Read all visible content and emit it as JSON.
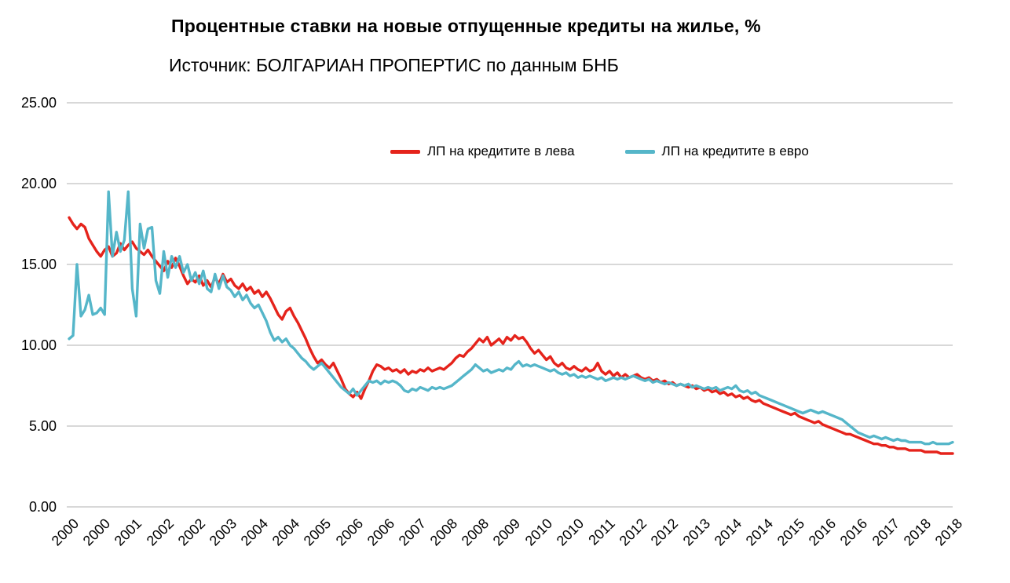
{
  "chart_data": {
    "type": "line",
    "title": "Процентные ставки на новые отпущенные кредиты на жилье, %",
    "subtitle": "Источник: БОЛГАРИАН ПРОПЕРТИС по данным БНБ",
    "x_unit": "month",
    "x_start": "2000-01",
    "x_end": "2018-09",
    "ylim": [
      0,
      25
    ],
    "grid": true,
    "legend_position": "top-center",
    "y_ticks": [
      {
        "value": 0,
        "label": "0.00"
      },
      {
        "value": 5,
        "label": "5.00"
      },
      {
        "value": 10,
        "label": "10.00"
      },
      {
        "value": 15,
        "label": "15.00"
      },
      {
        "value": 20,
        "label": "20.00"
      },
      {
        "value": 25,
        "label": "25.00"
      }
    ],
    "x_ticks": [
      {
        "m": 0,
        "label": "2000"
      },
      {
        "m": 8,
        "label": "2000"
      },
      {
        "m": 16,
        "label": "2001"
      },
      {
        "m": 24,
        "label": "2002"
      },
      {
        "m": 32,
        "label": "2002"
      },
      {
        "m": 40,
        "label": "2003"
      },
      {
        "m": 48,
        "label": "2004"
      },
      {
        "m": 56,
        "label": "2004"
      },
      {
        "m": 64,
        "label": "2005"
      },
      {
        "m": 72,
        "label": "2006"
      },
      {
        "m": 80,
        "label": "2006"
      },
      {
        "m": 88,
        "label": "2007"
      },
      {
        "m": 96,
        "label": "2008"
      },
      {
        "m": 104,
        "label": "2008"
      },
      {
        "m": 112,
        "label": "2009"
      },
      {
        "m": 120,
        "label": "2010"
      },
      {
        "m": 128,
        "label": "2010"
      },
      {
        "m": 136,
        "label": "2011"
      },
      {
        "m": 144,
        "label": "2012"
      },
      {
        "m": 152,
        "label": "2012"
      },
      {
        "m": 160,
        "label": "2013"
      },
      {
        "m": 168,
        "label": "2014"
      },
      {
        "m": 176,
        "label": "2014"
      },
      {
        "m": 184,
        "label": "2015"
      },
      {
        "m": 192,
        "label": "2016"
      },
      {
        "m": 200,
        "label": "2016"
      },
      {
        "m": 208,
        "label": "2017"
      },
      {
        "m": 216,
        "label": "2018"
      },
      {
        "m": 224,
        "label": "2018"
      }
    ],
    "series": [
      {
        "id": "leva",
        "name": "ЛП на кредитите в лева",
        "color": "#e5231b",
        "values": [
          17.9,
          17.5,
          17.2,
          17.5,
          17.3,
          16.6,
          16.2,
          15.8,
          15.5,
          15.9,
          16.1,
          15.5,
          15.7,
          16.3,
          15.9,
          16.2,
          16.4,
          16.0,
          15.8,
          15.6,
          15.9,
          15.5,
          15.2,
          14.9,
          14.6,
          15.2,
          14.8,
          15.4,
          14.9,
          14.3,
          13.8,
          14.1,
          13.9,
          14.3,
          13.7,
          14.0,
          13.6,
          14.2,
          13.8,
          14.4,
          13.9,
          14.1,
          13.7,
          13.5,
          13.8,
          13.4,
          13.6,
          13.2,
          13.4,
          13.0,
          13.3,
          12.9,
          12.4,
          11.9,
          11.6,
          12.1,
          12.3,
          11.8,
          11.4,
          10.9,
          10.4,
          9.8,
          9.3,
          8.9,
          9.1,
          8.8,
          8.6,
          8.9,
          8.4,
          7.9,
          7.3,
          7.0,
          6.8,
          7.1,
          6.7,
          7.3,
          7.8,
          8.4,
          8.8,
          8.7,
          8.5,
          8.6,
          8.4,
          8.5,
          8.3,
          8.5,
          8.2,
          8.4,
          8.3,
          8.5,
          8.4,
          8.6,
          8.4,
          8.5,
          8.6,
          8.5,
          8.7,
          8.9,
          9.2,
          9.4,
          9.3,
          9.6,
          9.8,
          10.1,
          10.4,
          10.2,
          10.5,
          10.0,
          10.2,
          10.4,
          10.1,
          10.5,
          10.3,
          10.6,
          10.4,
          10.5,
          10.2,
          9.8,
          9.5,
          9.7,
          9.4,
          9.1,
          9.3,
          8.9,
          8.7,
          8.9,
          8.6,
          8.5,
          8.7,
          8.5,
          8.4,
          8.6,
          8.4,
          8.5,
          8.9,
          8.4,
          8.2,
          8.4,
          8.1,
          8.3,
          8.0,
          8.2,
          8.0,
          8.1,
          8.2,
          8.0,
          7.9,
          8.0,
          7.8,
          7.9,
          7.7,
          7.8,
          7.6,
          7.7,
          7.5,
          7.6,
          7.5,
          7.4,
          7.5,
          7.3,
          7.4,
          7.2,
          7.3,
          7.1,
          7.2,
          7.0,
          7.1,
          6.9,
          7.0,
          6.8,
          6.9,
          6.7,
          6.8,
          6.6,
          6.5,
          6.6,
          6.4,
          6.3,
          6.2,
          6.1,
          6.0,
          5.9,
          5.8,
          5.7,
          5.8,
          5.6,
          5.5,
          5.4,
          5.3,
          5.2,
          5.3,
          5.1,
          5.0,
          4.9,
          4.8,
          4.7,
          4.6,
          4.5,
          4.5,
          4.4,
          4.3,
          4.2,
          4.1,
          4.0,
          3.9,
          3.9,
          3.8,
          3.8,
          3.7,
          3.7,
          3.6,
          3.6,
          3.6,
          3.5,
          3.5,
          3.5,
          3.5,
          3.4,
          3.4,
          3.4,
          3.4,
          3.3,
          3.3,
          3.3,
          3.3
        ]
      },
      {
        "id": "euro",
        "name": "ЛП на кредитите в евро",
        "color": "#55b6c9",
        "values": [
          10.4,
          10.6,
          15.0,
          11.8,
          12.2,
          13.1,
          11.9,
          12.0,
          12.3,
          11.9,
          19.5,
          15.5,
          17.0,
          15.8,
          16.5,
          19.5,
          13.5,
          11.8,
          17.5,
          16.0,
          17.2,
          17.3,
          14.0,
          13.2,
          15.8,
          14.2,
          15.5,
          14.8,
          15.5,
          14.5,
          15.0,
          14.0,
          14.5,
          13.8,
          14.6,
          13.5,
          13.3,
          14.4,
          13.5,
          14.3,
          13.6,
          13.4,
          13.0,
          13.3,
          12.8,
          13.1,
          12.6,
          12.3,
          12.5,
          12.0,
          11.5,
          10.8,
          10.3,
          10.5,
          10.2,
          10.4,
          10.0,
          9.8,
          9.5,
          9.2,
          9.0,
          8.7,
          8.5,
          8.7,
          8.9,
          8.6,
          8.3,
          8.0,
          7.7,
          7.4,
          7.2,
          7.0,
          7.3,
          6.9,
          7.2,
          7.5,
          7.8,
          7.7,
          7.8,
          7.6,
          7.8,
          7.7,
          7.8,
          7.7,
          7.5,
          7.2,
          7.1,
          7.3,
          7.2,
          7.4,
          7.3,
          7.2,
          7.4,
          7.3,
          7.4,
          7.3,
          7.4,
          7.5,
          7.7,
          7.9,
          8.1,
          8.3,
          8.5,
          8.8,
          8.6,
          8.4,
          8.5,
          8.3,
          8.4,
          8.5,
          8.4,
          8.6,
          8.5,
          8.8,
          9.0,
          8.7,
          8.8,
          8.7,
          8.8,
          8.7,
          8.6,
          8.5,
          8.4,
          8.5,
          8.3,
          8.2,
          8.3,
          8.1,
          8.2,
          8.0,
          8.1,
          8.0,
          8.1,
          8.0,
          7.9,
          8.0,
          7.8,
          7.9,
          8.0,
          7.9,
          8.0,
          7.9,
          8.0,
          8.1,
          8.0,
          7.9,
          7.8,
          7.9,
          7.7,
          7.8,
          7.7,
          7.6,
          7.7,
          7.6,
          7.5,
          7.6,
          7.5,
          7.6,
          7.4,
          7.5,
          7.4,
          7.3,
          7.4,
          7.3,
          7.4,
          7.2,
          7.3,
          7.4,
          7.3,
          7.5,
          7.2,
          7.1,
          7.2,
          7.0,
          7.1,
          6.9,
          6.8,
          6.7,
          6.6,
          6.5,
          6.4,
          6.3,
          6.2,
          6.1,
          6.0,
          5.9,
          5.8,
          5.9,
          6.0,
          5.9,
          5.8,
          5.9,
          5.8,
          5.7,
          5.6,
          5.5,
          5.4,
          5.2,
          5.0,
          4.8,
          4.6,
          4.5,
          4.4,
          4.3,
          4.4,
          4.3,
          4.2,
          4.3,
          4.2,
          4.1,
          4.2,
          4.1,
          4.1,
          4.0,
          4.0,
          4.0,
          4.0,
          3.9,
          3.9,
          4.0,
          3.9,
          3.9,
          3.9,
          3.9,
          4.0
        ]
      }
    ]
  }
}
